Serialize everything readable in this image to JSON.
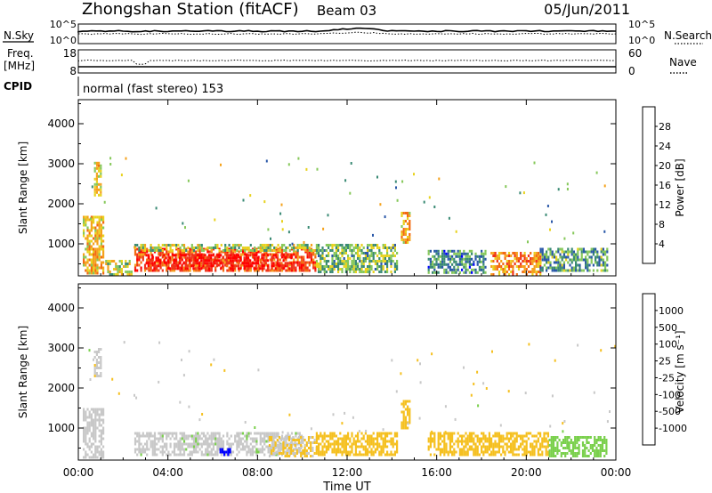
{
  "header": {
    "station": "Zhongshan Station (fitACF)",
    "beam": "Beam 03",
    "date": "05/Jun/2011"
  },
  "panels": {
    "noise_left_label": "N.Sky",
    "noise_right_label": "N.Search",
    "noise_left_ticks": [
      "10^5",
      "10^0"
    ],
    "noise_right_ticks": [
      "10^5",
      "10^0"
    ],
    "freq_left_label_1": "Freq.",
    "freq_left_label_2": "[MHz]",
    "freq_right_label": "Nave",
    "freq_left_ticks": [
      "18",
      "8"
    ],
    "freq_right_ticks": [
      "60",
      "0"
    ],
    "cpid_label": "CPID",
    "cpid_text": "normal (fast stereo) 153"
  },
  "colors": {
    "power_scale": [
      "#0000ff",
      "#2a58a8",
      "#3a8a74",
      "#86c85a",
      "#e8d21e",
      "#f5a21c",
      "#f36a12",
      "#f0321a",
      "#ff0000"
    ],
    "velocity_scale": [
      "#ff0000",
      "#f2581a",
      "#f5901c",
      "#f5c020",
      "#c8c8c8",
      "#7ad04c",
      "#3c8a72",
      "#2a58a8",
      "#0000ff"
    ]
  },
  "chart_data": [
    {
      "type": "heatmap",
      "name": "power",
      "ylabel": "Slant Range [km]",
      "yticks": [
        "1000",
        "2000",
        "3000",
        "4000"
      ],
      "ylim": [
        200,
        4600
      ],
      "xlim": [
        0,
        24
      ],
      "colorbar_label": "Power [dB]",
      "colorbar_ticks": [
        "4",
        "8",
        "12",
        "16",
        "20",
        "24",
        "28"
      ],
      "colorbar_range": [
        0,
        30
      ],
      "regions": [
        {
          "t0": 0.2,
          "t1": 1.1,
          "r0": 250,
          "r1": 1700,
          "v": 17
        },
        {
          "t0": 0.7,
          "t1": 1.0,
          "r0": 2200,
          "r1": 3050,
          "v": 16
        },
        {
          "t0": 1.2,
          "t1": 2.4,
          "r0": 250,
          "r1": 600,
          "v": 14
        },
        {
          "t0": 2.5,
          "t1": 10.6,
          "r0": 350,
          "r1": 900,
          "v": 23
        },
        {
          "t0": 3.0,
          "t1": 9.5,
          "r0": 400,
          "r1": 750,
          "v": 28
        },
        {
          "t0": 2.5,
          "t1": 10.6,
          "r0": 800,
          "r1": 1000,
          "v": 13
        },
        {
          "t0": 10.6,
          "t1": 14.2,
          "r0": 300,
          "r1": 1000,
          "v": 11
        },
        {
          "t0": 14.4,
          "t1": 14.8,
          "r0": 1000,
          "r1": 1800,
          "v": 18
        },
        {
          "t0": 15.6,
          "t1": 18.2,
          "r0": 300,
          "r1": 850,
          "v": 8
        },
        {
          "t0": 18.4,
          "t1": 20.6,
          "r0": 250,
          "r1": 800,
          "v": 20
        },
        {
          "t0": 20.6,
          "t1": 23.6,
          "r0": 300,
          "r1": 900,
          "v": 9
        }
      ]
    },
    {
      "type": "heatmap",
      "name": "velocity",
      "xlabel": "Time UT",
      "ylabel": "Slant Range [km]",
      "yticks": [
        "1000",
        "2000",
        "3000",
        "4000"
      ],
      "ylim": [
        200,
        4600
      ],
      "xlim": [
        0,
        24
      ],
      "xticks": [
        "00:00",
        "04:00",
        "08:00",
        "12:00",
        "16:00",
        "20:00",
        "00:00"
      ],
      "colorbar_label": "Velocity [m s⁻¹]",
      "colorbar_ticks": [
        "-1000",
        "-500",
        "-100",
        "-25",
        "25",
        "100",
        "500",
        "1000"
      ],
      "colorbar_range": [
        -1200,
        1200
      ],
      "regions": [
        {
          "t0": 0.2,
          "t1": 1.1,
          "r0": 250,
          "r1": 1500,
          "v": -60
        },
        {
          "t0": 0.7,
          "t1": 1.0,
          "r0": 2300,
          "r1": 3000,
          "v": -80
        },
        {
          "t0": 2.5,
          "t1": 10.0,
          "r0": 300,
          "r1": 900,
          "v": 80
        },
        {
          "t0": 6.3,
          "t1": 6.8,
          "r0": 350,
          "r1": 500,
          "v": 1000
        },
        {
          "t0": 8.5,
          "t1": 10.6,
          "r0": 300,
          "r1": 800,
          "v": -150
        },
        {
          "t0": 10.6,
          "t1": 14.2,
          "r0": 300,
          "r1": 900,
          "v": -200
        },
        {
          "t0": 14.4,
          "t1": 14.8,
          "r0": 1000,
          "r1": 1700,
          "v": -300
        },
        {
          "t0": 15.6,
          "t1": 21.0,
          "r0": 300,
          "r1": 900,
          "v": -250
        },
        {
          "t0": 21.0,
          "t1": 23.6,
          "r0": 300,
          "r1": 800,
          "v": 200
        }
      ]
    }
  ]
}
